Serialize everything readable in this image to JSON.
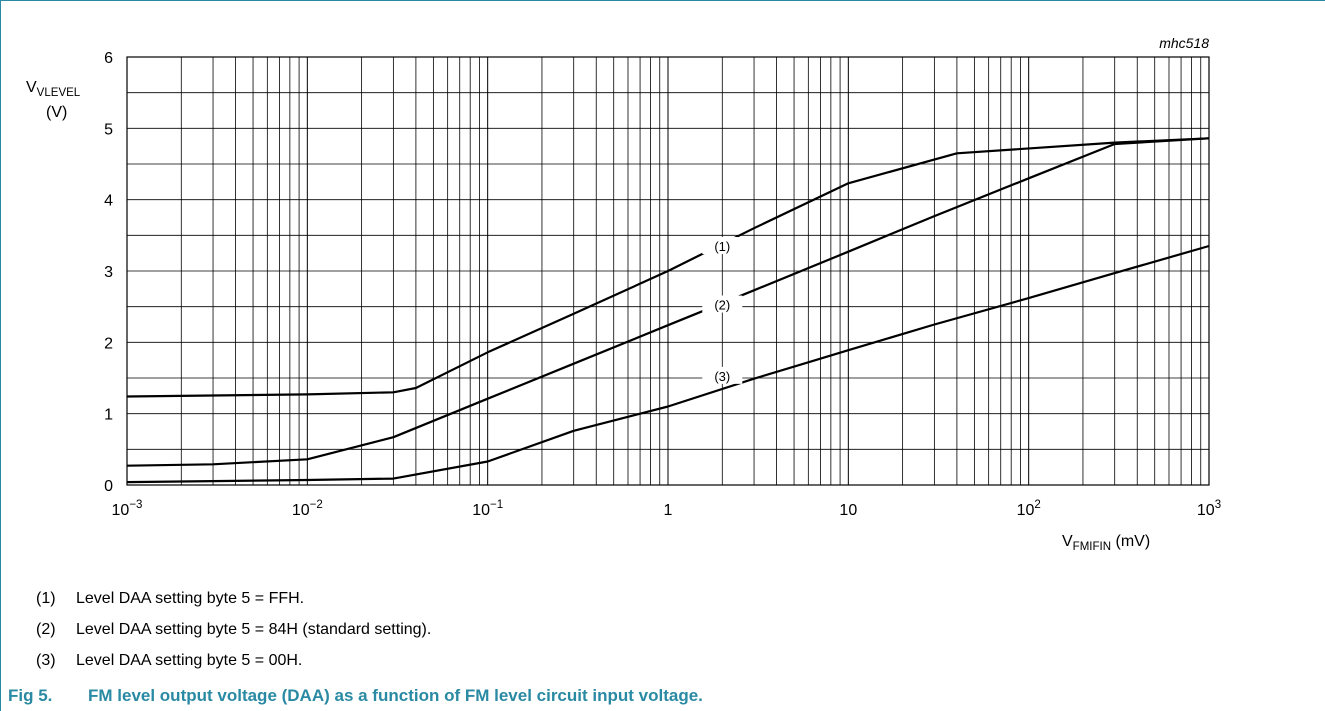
{
  "chart_data": {
    "type": "line",
    "code": "mhc518",
    "y_axis": {
      "label_main": "V",
      "label_sub": "VLEVEL",
      "unit": "(V)",
      "range": [
        0,
        6
      ],
      "ticks": [
        0,
        1,
        2,
        3,
        4,
        5,
        6
      ]
    },
    "x_axis": {
      "label_main": "V",
      "label_sub": "FMIFIN",
      "unit": "(mV)",
      "scale": "log",
      "range": [
        0.001,
        1000
      ],
      "ticks": [
        {
          "value": 0.001,
          "base": "10",
          "exp": "−3"
        },
        {
          "value": 0.01,
          "base": "10",
          "exp": "−2"
        },
        {
          "value": 0.1,
          "base": "10",
          "exp": "−1"
        },
        {
          "value": 1,
          "base": "1",
          "exp": ""
        },
        {
          "value": 10,
          "base": "10",
          "exp": ""
        },
        {
          "value": 100,
          "base": "10",
          "exp": "2"
        },
        {
          "value": 1000,
          "base": "10",
          "exp": "3"
        }
      ]
    },
    "grid": true,
    "series": [
      {
        "name": "(1)",
        "label_at": {
          "x": 2,
          "y": 3.35
        },
        "x": [
          0.001,
          0.01,
          0.03,
          0.04,
          0.1,
          0.3,
          1,
          3,
          10,
          40,
          300,
          1000
        ],
        "y": [
          1.24,
          1.27,
          1.3,
          1.36,
          1.86,
          2.4,
          3.0,
          3.6,
          4.23,
          4.65,
          4.8,
          4.86
        ]
      },
      {
        "name": "(2)",
        "label_at": {
          "x": 2,
          "y": 2.53
        },
        "x": [
          0.001,
          0.003,
          0.01,
          0.03,
          0.1,
          0.3,
          1,
          3,
          10,
          30,
          100,
          300,
          1000
        ],
        "y": [
          0.27,
          0.29,
          0.36,
          0.67,
          1.21,
          1.7,
          2.24,
          2.73,
          3.27,
          3.77,
          4.3,
          4.78,
          4.86
        ]
      },
      {
        "name": "(3)",
        "label_at": {
          "x": 2,
          "y": 1.53
        },
        "x": [
          0.001,
          0.01,
          0.03,
          0.1,
          0.3,
          1,
          3,
          6,
          10,
          30,
          100,
          300,
          1000
        ],
        "y": [
          0.04,
          0.07,
          0.09,
          0.33,
          0.76,
          1.1,
          1.49,
          1.72,
          1.89,
          2.25,
          2.62,
          2.97,
          3.35
        ]
      }
    ]
  },
  "legend": [
    {
      "num": "(1)",
      "text": "Level DAA setting byte 5 = FFH."
    },
    {
      "num": "(2)",
      "text": "Level DAA setting byte 5 = 84H (standard setting)."
    },
    {
      "num": "(3)",
      "text": "Level DAA setting byte 5 = 00H."
    }
  ],
  "caption": {
    "label": "Fig 5.",
    "text": "FM level output voltage (DAA) as a function of FM level circuit input voltage."
  },
  "colors": {
    "accent": "#2a8aa3",
    "line": "#000000",
    "grid": "#000000"
  }
}
